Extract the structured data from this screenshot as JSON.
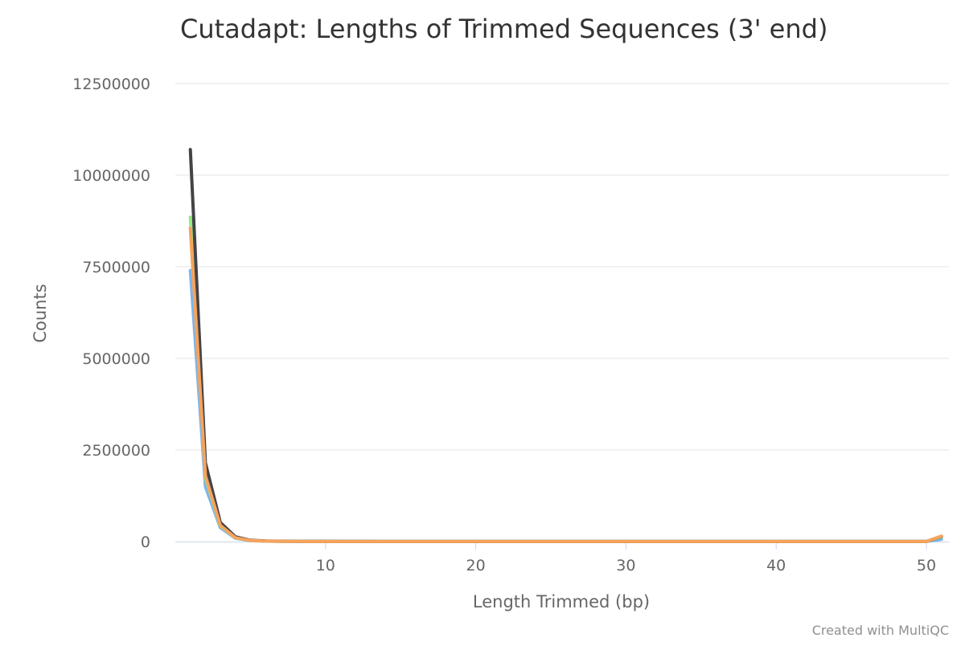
{
  "chart_data": {
    "type": "line",
    "title": "Cutadapt: Lengths of Trimmed Sequences (3' end)",
    "xlabel": "Length Trimmed (bp)",
    "ylabel": "Counts",
    "xlim": [
      0,
      51.5
    ],
    "ylim": [
      0,
      12500000
    ],
    "x_ticks": [
      10,
      20,
      30,
      40,
      50
    ],
    "y_ticks": [
      0,
      2500000,
      5000000,
      7500000,
      10000000,
      12500000
    ],
    "x_tick_labels": [
      "10",
      "20",
      "30",
      "40",
      "50"
    ],
    "y_tick_labels": [
      "0",
      "2500000",
      "5000000",
      "7500000",
      "10000000",
      "12500000"
    ],
    "grid": true,
    "series": [
      {
        "color": "#7cb5ec",
        "points": [
          [
            1,
            7400000
          ],
          [
            2,
            1500000
          ],
          [
            3,
            380000
          ],
          [
            4,
            90000
          ],
          [
            5,
            25000
          ],
          [
            6,
            12000
          ],
          [
            7,
            6000
          ],
          [
            8,
            4000
          ],
          [
            10,
            3000
          ],
          [
            15,
            2500
          ],
          [
            20,
            2200
          ],
          [
            25,
            2000
          ],
          [
            30,
            2000
          ],
          [
            35,
            2000
          ],
          [
            40,
            2000
          ],
          [
            45,
            2000
          ],
          [
            50,
            2000
          ],
          [
            51,
            60000
          ]
        ]
      },
      {
        "color": "#90ed7d",
        "points": [
          [
            1,
            8850000
          ],
          [
            2,
            1750000
          ],
          [
            3,
            430000
          ],
          [
            4,
            100000
          ],
          [
            5,
            28000
          ],
          [
            6,
            13000
          ],
          [
            7,
            7000
          ],
          [
            8,
            4500
          ],
          [
            10,
            3000
          ],
          [
            15,
            2500
          ],
          [
            20,
            2200
          ],
          [
            25,
            2000
          ],
          [
            30,
            2000
          ],
          [
            35,
            2000
          ],
          [
            40,
            2000
          ],
          [
            45,
            2000
          ],
          [
            50,
            2000
          ],
          [
            51,
            130000
          ]
        ]
      },
      {
        "color": "#434348",
        "points": [
          [
            1,
            10700000
          ],
          [
            2,
            2150000
          ],
          [
            3,
            520000
          ],
          [
            4,
            130000
          ],
          [
            5,
            35000
          ],
          [
            6,
            16000
          ],
          [
            7,
            8000
          ],
          [
            8,
            5000
          ],
          [
            10,
            3500
          ],
          [
            15,
            3000
          ],
          [
            20,
            2500
          ],
          [
            25,
            2200
          ],
          [
            30,
            2200
          ],
          [
            35,
            2200
          ],
          [
            40,
            2200
          ],
          [
            45,
            2200
          ],
          [
            50,
            2200
          ],
          [
            51,
            140000
          ]
        ]
      },
      {
        "color": "#f7a35c",
        "points": [
          [
            1,
            8550000
          ],
          [
            2,
            1800000
          ],
          [
            3,
            440000
          ],
          [
            4,
            105000
          ],
          [
            5,
            29000
          ],
          [
            6,
            13500
          ],
          [
            7,
            7000
          ],
          [
            8,
            4500
          ],
          [
            10,
            3000
          ],
          [
            15,
            2500
          ],
          [
            20,
            2200
          ],
          [
            25,
            2000
          ],
          [
            30,
            2000
          ],
          [
            35,
            2000
          ],
          [
            40,
            2000
          ],
          [
            45,
            2000
          ],
          [
            50,
            2000
          ],
          [
            51,
            150000
          ]
        ]
      }
    ]
  },
  "credit": "Created with MultiQC"
}
